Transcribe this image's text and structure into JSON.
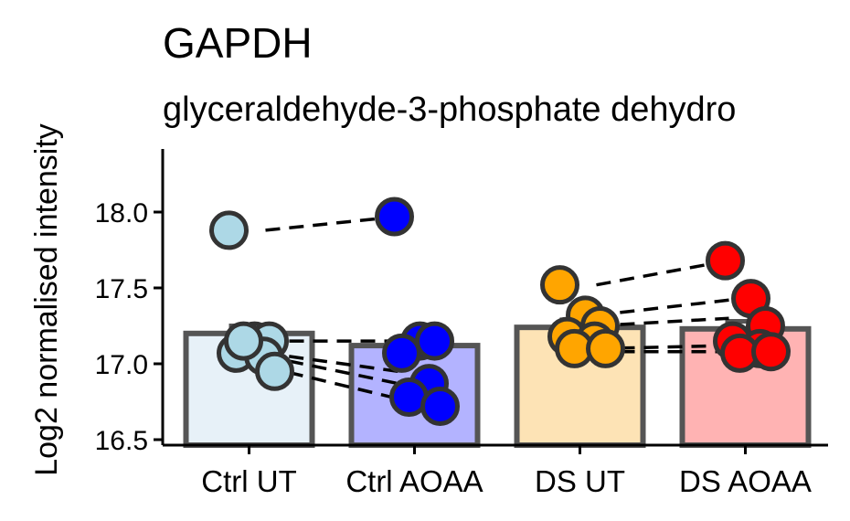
{
  "chart_data": {
    "type": "bar",
    "title": "GAPDH",
    "subtitle": "glyceraldehyde-3-phosphate dehydro",
    "ylabel": "Log2 normalised intensity",
    "xlabel": "",
    "ylim": [
      16.45,
      18.4
    ],
    "yticks": [
      16.5,
      17.0,
      17.5,
      18.0
    ],
    "ytick_labels": [
      "16.5",
      "17.0",
      "17.5",
      "18.0"
    ],
    "categories": [
      "Ctrl UT",
      "Ctrl AOAA",
      "DS UT",
      "DS AOAA"
    ],
    "values": [
      17.2,
      17.12,
      17.24,
      17.23
    ],
    "bar_fill": [
      "#e7f1f8",
      "#b3b3ff",
      "#fde3b5",
      "#ffb3b3"
    ],
    "point_fill": [
      "#add8e6",
      "#0000ff",
      "#ffa500",
      "#ff0000"
    ],
    "points": [
      [
        17.88,
        17.15,
        17.15,
        17.07,
        17.05,
        17.15,
        16.95
      ],
      [
        17.97,
        17.15,
        17.15,
        17.07,
        16.87,
        16.78,
        16.72
      ],
      [
        17.52,
        17.32,
        17.25,
        17.18,
        17.15,
        17.1,
        17.1
      ],
      [
        17.68,
        17.43,
        17.25,
        17.15,
        17.1,
        17.07,
        17.08
      ]
    ],
    "pairs": [
      {
        "from": 0,
        "to": 1,
        "y1": 17.88,
        "y2": 17.97
      },
      {
        "from": 0,
        "to": 1,
        "y1": 17.15,
        "y2": 17.15
      },
      {
        "from": 0,
        "to": 1,
        "y1": 17.07,
        "y2": 16.95
      },
      {
        "from": 0,
        "to": 1,
        "y1": 17.05,
        "y2": 16.87
      },
      {
        "from": 0,
        "to": 1,
        "y1": 16.98,
        "y2": 16.77
      },
      {
        "from": 2,
        "to": 3,
        "y1": 17.52,
        "y2": 17.68
      },
      {
        "from": 2,
        "to": 3,
        "y1": 17.32,
        "y2": 17.42
      },
      {
        "from": 2,
        "to": 3,
        "y1": 17.25,
        "y2": 17.3
      },
      {
        "from": 2,
        "to": 3,
        "y1": 17.1,
        "y2": 17.12
      },
      {
        "from": 2,
        "to": 3,
        "y1": 17.08,
        "y2": 17.08
      }
    ]
  }
}
